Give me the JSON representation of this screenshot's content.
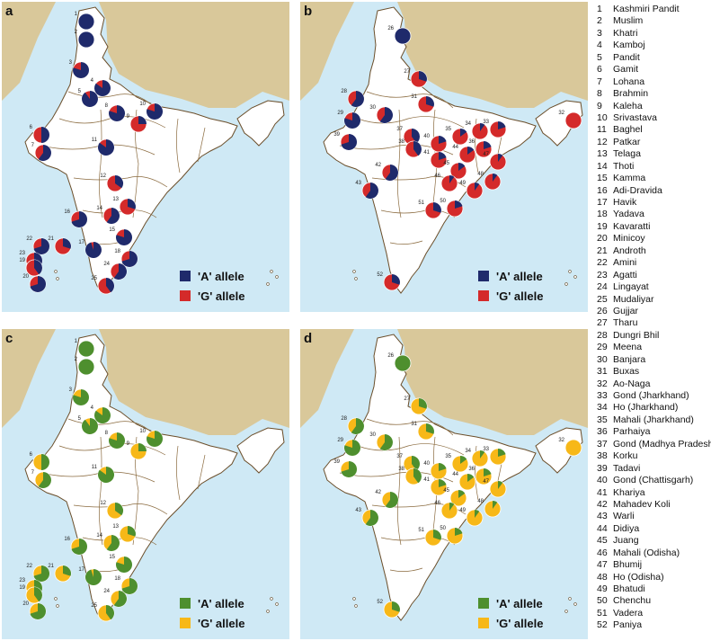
{
  "panels": [
    {
      "id": "a",
      "label": "a",
      "legend": [
        {
          "label": "'A' allele",
          "color": "#1f2a6b"
        },
        {
          "label": "'G' allele",
          "color": "#d42a2a"
        }
      ]
    },
    {
      "id": "b",
      "label": "b",
      "legend": [
        {
          "label": "'A' allele",
          "color": "#1f2a6b"
        },
        {
          "label": "'G' allele",
          "color": "#d42a2a"
        }
      ]
    },
    {
      "id": "c",
      "label": "c",
      "legend": [
        {
          "label": "'A' allele",
          "color": "#4e8f2e"
        },
        {
          "label": "'G' allele",
          "color": "#f7b818"
        }
      ]
    },
    {
      "id": "d",
      "label": "d",
      "legend": [
        {
          "label": "'A' allele",
          "color": "#4e8f2e"
        },
        {
          "label": "'G' allele",
          "color": "#f7b818"
        }
      ]
    }
  ],
  "populations": [
    {
      "num": "1",
      "name": "Kashmiri Pandit"
    },
    {
      "num": "2",
      "name": "Muslim"
    },
    {
      "num": "3",
      "name": "Khatri"
    },
    {
      "num": "4",
      "name": "Kamboj"
    },
    {
      "num": "5",
      "name": "Pandit"
    },
    {
      "num": "6",
      "name": "Gamit"
    },
    {
      "num": "7",
      "name": "Lohana"
    },
    {
      "num": "8",
      "name": "Brahmin"
    },
    {
      "num": "9",
      "name": "Kaleha"
    },
    {
      "num": "10",
      "name": "Srivastava"
    },
    {
      "num": "11",
      "name": "Baghel"
    },
    {
      "num": "12",
      "name": "Patkar"
    },
    {
      "num": "13",
      "name": "Telaga"
    },
    {
      "num": "14",
      "name": "Thoti"
    },
    {
      "num": "15",
      "name": "Kamma"
    },
    {
      "num": "16",
      "name": "Adi-Dravida"
    },
    {
      "num": "17",
      "name": "Havik"
    },
    {
      "num": "18",
      "name": "Yadava"
    },
    {
      "num": "19",
      "name": "Kavaratti"
    },
    {
      "num": "20",
      "name": "Minicoy"
    },
    {
      "num": "21",
      "name": "Androth"
    },
    {
      "num": "22",
      "name": "Amini"
    },
    {
      "num": "23",
      "name": "Agatti"
    },
    {
      "num": "24",
      "name": "Lingayat"
    },
    {
      "num": "25",
      "name": "Mudaliyar"
    },
    {
      "num": "26",
      "name": "Gujjar"
    },
    {
      "num": "27",
      "name": "Tharu"
    },
    {
      "num": "28",
      "name": "Dungri Bhil"
    },
    {
      "num": "29",
      "name": "Meena"
    },
    {
      "num": "30",
      "name": "Banjara"
    },
    {
      "num": "31",
      "name": "Buxas"
    },
    {
      "num": "32",
      "name": "Ao-Naga"
    },
    {
      "num": "33",
      "name": "Gond (Jharkhand)"
    },
    {
      "num": "34",
      "name": "Ho (Jharkhand)"
    },
    {
      "num": "35",
      "name": "Mahali (Jharkhand)"
    },
    {
      "num": "36",
      "name": "Parhaiya"
    },
    {
      "num": "37",
      "name": "Gond (Madhya Pradesh)"
    },
    {
      "num": "38",
      "name": "Korku"
    },
    {
      "num": "39",
      "name": "Tadavi"
    },
    {
      "num": "40",
      "name": "Gond (Chattisgarh)"
    },
    {
      "num": "41",
      "name": "Khariya"
    },
    {
      "num": "42",
      "name": "Mahadev Koli"
    },
    {
      "num": "43",
      "name": "Warli"
    },
    {
      "num": "44",
      "name": "Didiya"
    },
    {
      "num": "45",
      "name": "Juang"
    },
    {
      "num": "46",
      "name": "Mahali (Odisha)"
    },
    {
      "num": "47",
      "name": "Bhumij"
    },
    {
      "num": "48",
      "name": "Ho (Odisha)"
    },
    {
      "num": "49",
      "name": "Bhatudi"
    },
    {
      "num": "50",
      "name": "Chenchu"
    },
    {
      "num": "51",
      "name": "Vadera"
    },
    {
      "num": "52",
      "name": "Paniya"
    }
  ],
  "markers_ab": [
    {
      "panel": "a",
      "num": "1",
      "a_fraction": 1.0
    },
    {
      "panel": "a",
      "num": "2",
      "a_fraction": 1.0
    },
    {
      "panel": "a",
      "num": "3",
      "a_fraction": 0.8
    },
    {
      "panel": "a",
      "num": "4",
      "a_fraction": 0.85
    },
    {
      "panel": "a",
      "num": "5",
      "a_fraction": 0.9
    },
    {
      "panel": "a",
      "num": "8",
      "a_fraction": 0.8
    },
    {
      "panel": "a",
      "num": "10",
      "a_fraction": 0.8
    },
    {
      "panel": "a",
      "num": "9",
      "a_fraction": 0.25
    },
    {
      "panel": "a",
      "num": "6",
      "a_fraction": 0.5
    },
    {
      "panel": "a",
      "num": "7",
      "a_fraction": 0.6
    },
    {
      "panel": "a",
      "num": "11",
      "a_fraction": 0.85
    },
    {
      "panel": "a",
      "num": "12",
      "a_fraction": 0.35
    },
    {
      "panel": "a",
      "num": "13",
      "a_fraction": 0.3
    },
    {
      "panel": "a",
      "num": "16",
      "a_fraction": 0.7
    },
    {
      "panel": "a",
      "num": "14",
      "a_fraction": 0.6
    },
    {
      "panel": "a",
      "num": "15",
      "a_fraction": 0.8
    },
    {
      "panel": "a",
      "num": "17",
      "a_fraction": 0.95
    },
    {
      "panel": "a",
      "num": "18",
      "a_fraction": 0.7
    },
    {
      "panel": "a",
      "num": "22",
      "a_fraction": 0.7
    },
    {
      "panel": "a",
      "num": "21",
      "a_fraction": 0.3
    },
    {
      "panel": "a",
      "num": "23",
      "a_fraction": 0.5
    },
    {
      "panel": "a",
      "num": "19",
      "a_fraction": 0.4
    },
    {
      "panel": "a",
      "num": "20",
      "a_fraction": 0.7
    },
    {
      "panel": "a",
      "num": "24",
      "a_fraction": 0.6
    },
    {
      "panel": "a",
      "num": "25",
      "a_fraction": 0.4
    },
    {
      "panel": "b",
      "num": "26",
      "a_fraction": 1.0
    },
    {
      "panel": "b",
      "num": "27",
      "a_fraction": 0.3
    },
    {
      "panel": "b",
      "num": "28",
      "a_fraction": 0.6
    },
    {
      "panel": "b",
      "num": "29",
      "a_fraction": 0.8
    },
    {
      "panel": "b",
      "num": "30",
      "a_fraction": 0.6
    },
    {
      "panel": "b",
      "num": "31",
      "a_fraction": 0.3
    },
    {
      "panel": "b",
      "num": "39",
      "a_fraction": 0.7
    },
    {
      "panel": "b",
      "num": "37",
      "a_fraction": 0.4
    },
    {
      "panel": "b",
      "num": "38",
      "a_fraction": 0.4
    },
    {
      "panel": "b",
      "num": "35",
      "a_fraction": 0.15
    },
    {
      "panel": "b",
      "num": "34",
      "a_fraction": 0.1
    },
    {
      "panel": "b",
      "num": "33",
      "a_fraction": 0.2
    },
    {
      "panel": "b",
      "num": "36",
      "a_fraction": 0.2
    },
    {
      "panel": "b",
      "num": "40",
      "a_fraction": 0.2
    },
    {
      "panel": "b",
      "num": "44",
      "a_fraction": 0.15
    },
    {
      "panel": "b",
      "num": "41",
      "a_fraction": 0.2
    },
    {
      "panel": "b",
      "num": "47",
      "a_fraction": 0.1
    },
    {
      "panel": "b",
      "num": "45",
      "a_fraction": 0.15
    },
    {
      "panel": "b",
      "num": "42",
      "a_fraction": 0.6
    },
    {
      "panel": "b",
      "num": "43",
      "a_fraction": 0.6
    },
    {
      "panel": "b",
      "num": "46",
      "a_fraction": 0.1
    },
    {
      "panel": "b",
      "num": "48",
      "a_fraction": 0.1
    },
    {
      "panel": "b",
      "num": "49",
      "a_fraction": 0.1
    },
    {
      "panel": "b",
      "num": "50",
      "a_fraction": 0.2
    },
    {
      "panel": "b",
      "num": "51",
      "a_fraction": 0.3
    },
    {
      "panel": "b",
      "num": "32",
      "a_fraction": 0.0
    },
    {
      "panel": "b",
      "num": "52",
      "a_fraction": 0.3
    }
  ]
}
